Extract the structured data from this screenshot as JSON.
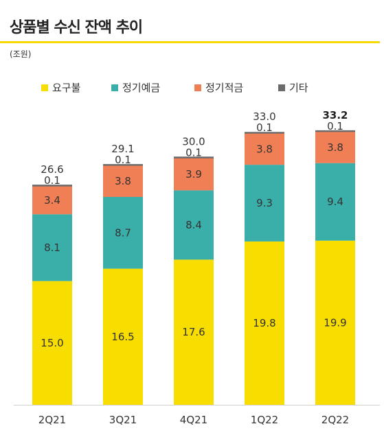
{
  "title": "상품별 수신 잔액 추이",
  "unit_label": "(조원)",
  "legend": [
    {
      "label": "요구불",
      "color": "#f7dd00"
    },
    {
      "label": "정기예금",
      "color": "#3aafa9"
    },
    {
      "label": "정기적금",
      "color": "#f07f56"
    },
    {
      "label": "기타",
      "color": "#6b6b6b"
    }
  ],
  "chart_data": {
    "type": "bar",
    "stacked": true,
    "categories": [
      "2Q21",
      "3Q21",
      "4Q21",
      "1Q22",
      "2Q22"
    ],
    "series": [
      {
        "name": "요구불",
        "values": [
          15.0,
          16.5,
          17.6,
          19.8,
          19.9
        ],
        "labels": [
          "15.0",
          "16.5",
          "17.6",
          "19.8",
          "19.9"
        ]
      },
      {
        "name": "정기예금",
        "values": [
          8.1,
          8.7,
          8.4,
          9.3,
          9.4
        ],
        "labels": [
          "8.1",
          "8.7",
          "8.4",
          "9.3",
          "9.4"
        ]
      },
      {
        "name": "정기적금",
        "values": [
          3.4,
          3.8,
          3.9,
          3.8,
          3.8
        ],
        "labels": [
          "3.4",
          "3.8",
          "3.9",
          "3.8",
          "3.8"
        ]
      },
      {
        "name": "기타",
        "values": [
          0.1,
          0.1,
          0.1,
          0.1,
          0.1
        ],
        "labels": [
          "0.1",
          "0.1",
          "0.1",
          "0.1",
          "0.1"
        ]
      }
    ],
    "totals": [
      "26.6",
      "29.1",
      "30.0",
      "33.0",
      "33.2"
    ],
    "bold_total_index": 4,
    "ylim": [
      0,
      35
    ],
    "grid": false
  }
}
